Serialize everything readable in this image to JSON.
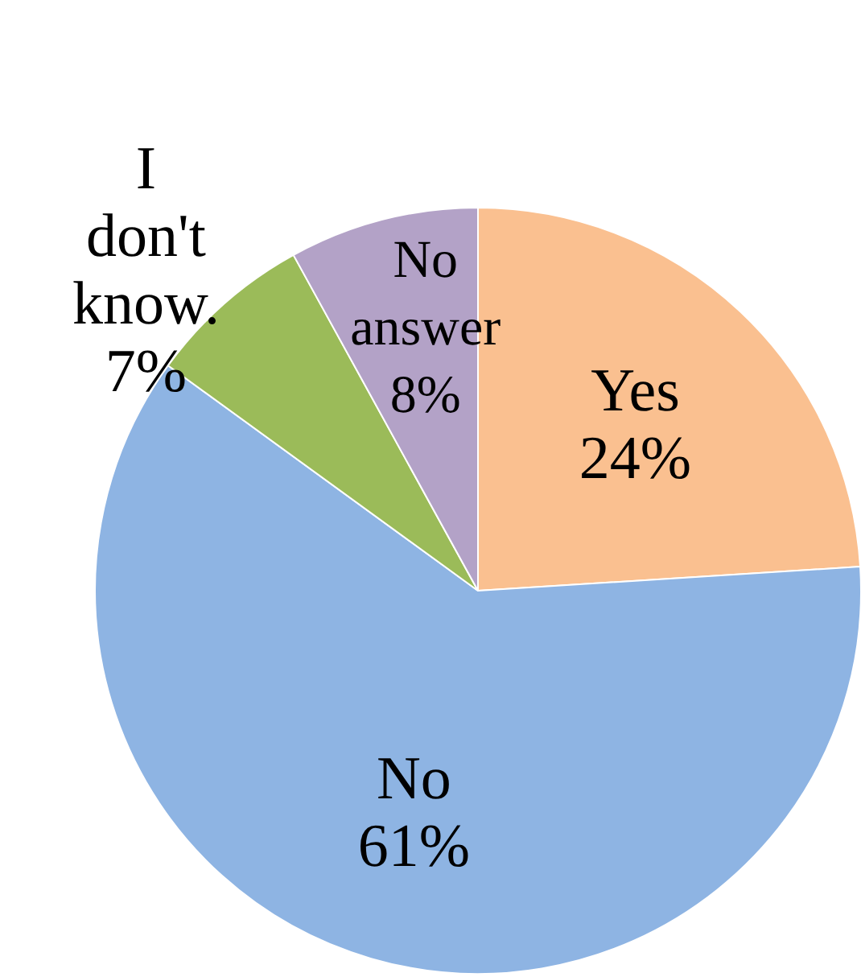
{
  "chart_data": {
    "type": "pie",
    "categories": [
      "Yes",
      "No",
      "I don't know.",
      "No answer"
    ],
    "values": [
      24,
      61,
      7,
      8
    ],
    "colors": [
      "#fac090",
      "#8eb4e3",
      "#9bbb59",
      "#b3a2c7"
    ],
    "value_labels": [
      "24%",
      "61%",
      "7%",
      "8%"
    ]
  }
}
